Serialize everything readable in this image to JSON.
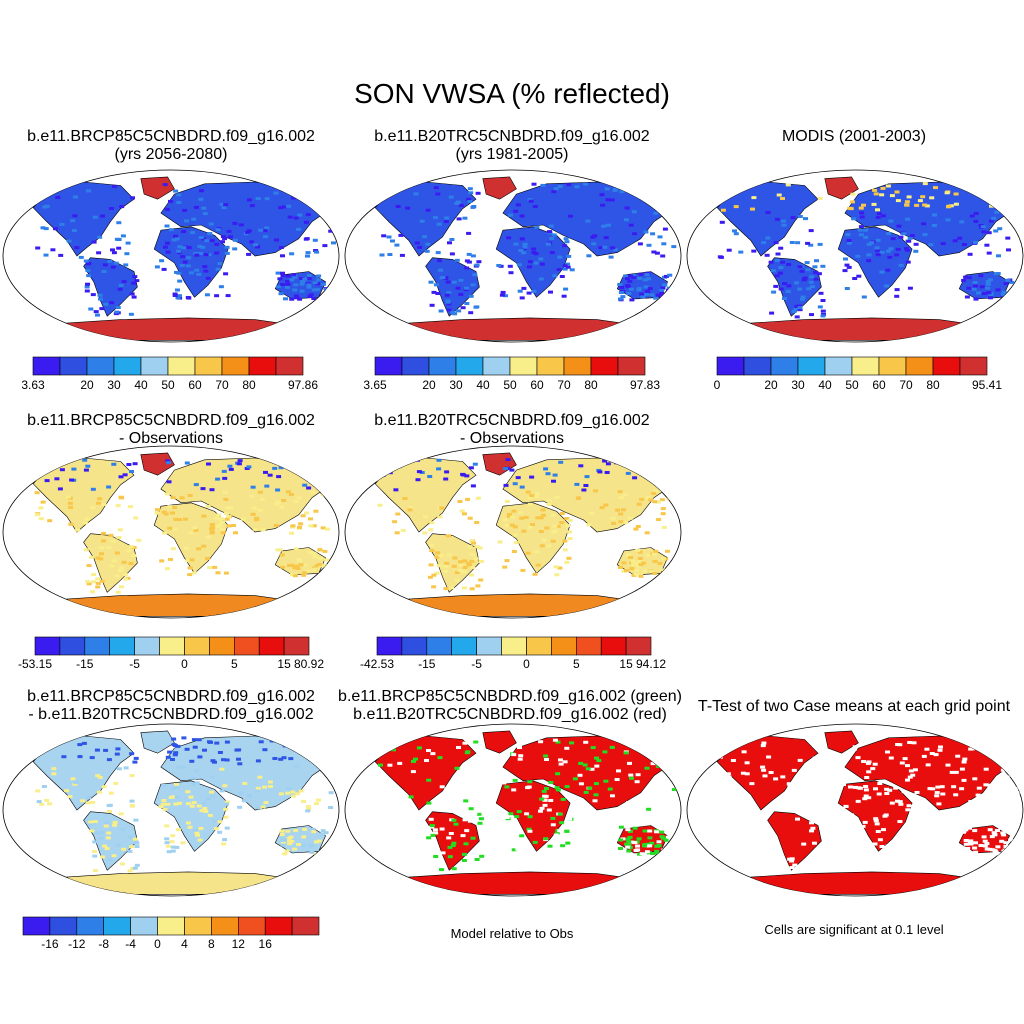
{
  "title": "SON VWSA (% reflected)",
  "panels": [
    {
      "id": "p1",
      "title_line1": "b.e11.BRCP85C5CNBDRD.f09_g16.002",
      "title_line2": "(yrs 2056-2080)",
      "kind": "absolute"
    },
    {
      "id": "p2",
      "title_line1": "b.e11.B20TRC5CNBDRD.f09_g16.002",
      "title_line2": "(yrs 1981-2005)",
      "kind": "absolute"
    },
    {
      "id": "p3",
      "title_line1": "",
      "title_line2": "MODIS (2001-2003)",
      "kind": "absolute"
    },
    {
      "id": "p4",
      "title_line1": "b.e11.BRCP85C5CNBDRD.f09_g16.002",
      "title_line2": "- Observations",
      "kind": "difference"
    },
    {
      "id": "p5",
      "title_line1": "b.e11.B20TRC5CNBDRD.f09_g16.002",
      "title_line2": "- Observations",
      "kind": "difference"
    },
    {
      "id": "p7",
      "title_line1": "b.e11.BRCP85C5CNBDRD.f09_g16.002",
      "title_line2": "- b.e11.B20TRC5CNBDRD.f09_g16.002",
      "kind": "case-difference"
    },
    {
      "id": "p8",
      "title_line1": "b.e11.BRCP85C5CNBDRD.f09_g16.002 (green)",
      "title_line2": "b.e11.B20TRC5CNBDRD.f09_g16.002 (red)",
      "kind": "model-vs-obs",
      "note": "Model relative to Obs"
    },
    {
      "id": "p9",
      "title_line1": "T-Test of two Case means at each grid point",
      "title_line2": "",
      "kind": "ttest",
      "note": "Cells are significant at 0.1 level"
    }
  ],
  "colorbars": [
    {
      "panel": "p1",
      "labels": [
        "3.63",
        "20",
        "30",
        "40",
        "50",
        "60",
        "70",
        "80",
        "97.86"
      ],
      "colors": [
        "#3b1cf0",
        "#2f4fe0",
        "#2f7fe8",
        "#24a8ec",
        "#9fd0f0",
        "#f8ee8a",
        "#f8c648",
        "#f49018",
        "#e80e0e",
        "#d03030"
      ]
    },
    {
      "panel": "p2",
      "labels": [
        "3.65",
        "20",
        "30",
        "40",
        "50",
        "60",
        "70",
        "80",
        "97.83"
      ],
      "colors": [
        "#3b1cf0",
        "#2f4fe0",
        "#2f7fe8",
        "#24a8ec",
        "#9fd0f0",
        "#f8ee8a",
        "#f8c648",
        "#f49018",
        "#e80e0e",
        "#d03030"
      ]
    },
    {
      "panel": "p3",
      "labels": [
        "0",
        "20",
        "30",
        "40",
        "50",
        "60",
        "70",
        "80",
        "95.41"
      ],
      "colors": [
        "#3b1cf0",
        "#2f4fe0",
        "#2f7fe8",
        "#24a8ec",
        "#9fd0f0",
        "#f8ee8a",
        "#f8c648",
        "#f49018",
        "#e80e0e",
        "#d03030"
      ]
    },
    {
      "panel": "p4",
      "labels": [
        "-53.15",
        "-15",
        "-5",
        "0",
        "5",
        "15",
        "80.92"
      ],
      "colors": [
        "#3b1cf0",
        "#2f4fe0",
        "#2f7fe8",
        "#24a8ec",
        "#9fd0f0",
        "#f8ee8a",
        "#f8c648",
        "#f49018",
        "#f05020",
        "#e80e0e",
        "#d03030"
      ]
    },
    {
      "panel": "p5",
      "labels": [
        "-42.53",
        "-15",
        "-5",
        "0",
        "5",
        "15",
        "94.12"
      ],
      "colors": [
        "#3b1cf0",
        "#2f4fe0",
        "#2f7fe8",
        "#24a8ec",
        "#9fd0f0",
        "#f8ee8a",
        "#f8c648",
        "#f49018",
        "#f05020",
        "#e80e0e",
        "#d03030"
      ]
    },
    {
      "panel": "p7",
      "labels": [
        "-16",
        "-12",
        "-8",
        "-4",
        "0",
        "4",
        "8",
        "12",
        "16"
      ],
      "colors": [
        "#3b1cf0",
        "#2f4fe0",
        "#2f7fe8",
        "#24a8ec",
        "#9fd0f0",
        "#f8ee8a",
        "#f8c648",
        "#f49018",
        "#f05020",
        "#e80e0e",
        "#d03030"
      ]
    }
  ],
  "colors": {
    "land_absolute": "#2f55e6",
    "ocean": "#ffffff",
    "coast": "#000000",
    "antarctica_abs": "#d03030",
    "land_diff": "#f6e48a",
    "antarctica_diff": "#f08a20",
    "green_cells": "#22dd22",
    "red_cells": "#e80e0e"
  }
}
